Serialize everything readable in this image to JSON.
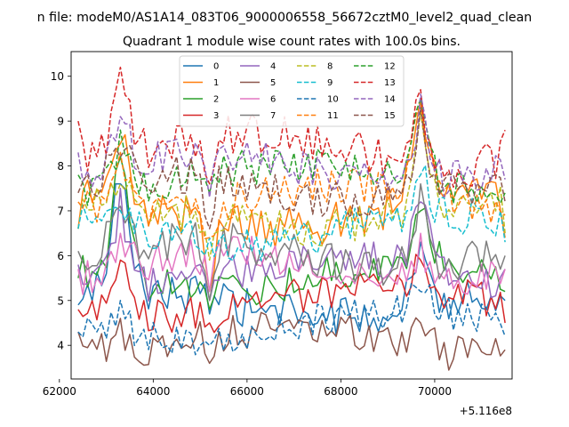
{
  "chart_data": {
    "type": "line",
    "suptitle": "n file: modeM0/AS1A14_083T06_9000006558_56672cztM0_level2_quad_clean",
    "title": "Quadrant 1 module wise count rates with 100.0s bins.",
    "xlabel": "",
    "ylabel": "",
    "x_offset_label": "+5.116e8",
    "xlim": [
      62250,
      71650
    ],
    "ylim": [
      3.25,
      10.55
    ],
    "xticks": [
      62000,
      64000,
      66000,
      68000,
      70000
    ],
    "xtick_labels": [
      "62000",
      "64000",
      "66000",
      "68000",
      "70000"
    ],
    "yticks": [
      4,
      5,
      6,
      7,
      8,
      9,
      10
    ],
    "ytick_labels": [
      "4",
      "5",
      "6",
      "7",
      "8",
      "9",
      "10"
    ],
    "x_start": 62400,
    "x_step": 100,
    "grid": false,
    "legend_position": "top-center",
    "legend_columns": 4,
    "series": [
      {
        "name": "0",
        "color": "#1f77b4",
        "dash": "solid",
        "level": 4.95,
        "amp": 0.32,
        "phase": 0.3,
        "key_values": {
          "62400": 4.9,
          "63300": 7.6,
          "65200": 4.7,
          "69700": 6.3,
          "71500": 5.0
        }
      },
      {
        "name": "1",
        "color": "#ff7f0e",
        "dash": "solid",
        "level": 7.0,
        "amp": 0.35,
        "phase": 1.1,
        "key_values": {
          "62400": 6.6,
          "63300": 8.5,
          "65200": 5.2,
          "69700": 9.5,
          "71500": 6.4
        }
      },
      {
        "name": "2",
        "color": "#2ca02c",
        "dash": "solid",
        "level": 5.55,
        "amp": 0.3,
        "phase": 2.0,
        "key_values": {
          "62400": 5.5,
          "63300": 8.2,
          "65200": 4.8,
          "69700": 7.0,
          "71500": 5.2
        }
      },
      {
        "name": "3",
        "color": "#d62728",
        "dash": "solid",
        "level": 5.0,
        "amp": 0.3,
        "phase": 2.7,
        "key_values": {
          "62400": 4.8,
          "63300": 5.9,
          "65200": 4.5,
          "69700": 5.9,
          "71500": 4.5
        }
      },
      {
        "name": "4",
        "color": "#9467bd",
        "dash": "solid",
        "level": 5.65,
        "amp": 0.3,
        "phase": 3.4,
        "key_values": {
          "62400": 5.8,
          "63300": 7.5,
          "65200": 5.0,
          "69700": 7.2,
          "71500": 5.7
        }
      },
      {
        "name": "5",
        "color": "#8c564b",
        "dash": "solid",
        "level": 4.1,
        "amp": 0.3,
        "phase": 4.1,
        "key_values": {
          "62400": 4.3,
          "63300": 4.6,
          "65200": 3.6,
          "69700": 4.5,
          "71500": 3.9
        }
      },
      {
        "name": "6",
        "color": "#e377c2",
        "dash": "solid",
        "level": 5.75,
        "amp": 0.3,
        "phase": 4.9,
        "key_values": {
          "62400": 5.7,
          "63300": 6.5,
          "65200": 5.2,
          "69700": 6.5,
          "71500": 5.7
        }
      },
      {
        "name": "7",
        "color": "#7f7f7f",
        "dash": "solid",
        "level": 6.05,
        "amp": 0.32,
        "phase": 5.6,
        "key_values": {
          "62400": 6.1,
          "63300": 7.1,
          "65200": 5.0,
          "69700": 7.6,
          "71500": 6.0
        }
      },
      {
        "name": "8",
        "color": "#bcbd22",
        "dash": "dashed",
        "level": 6.9,
        "amp": 0.3,
        "phase": 0.8,
        "key_values": {
          "62400": 6.6,
          "63300": 7.6,
          "65200": 5.9,
          "69700": 9.2,
          "71500": 6.5
        }
      },
      {
        "name": "9",
        "color": "#17becf",
        "dash": "dashed",
        "level": 6.6,
        "amp": 0.3,
        "phase": 1.6,
        "key_values": {
          "62400": 6.6,
          "63300": 7.0,
          "65200": 6.4,
          "69700": 7.8,
          "71500": 6.3
        }
      },
      {
        "name": "10",
        "color": "#1f77b4",
        "dash": "dashed",
        "level": 4.45,
        "amp": 0.28,
        "phase": 2.4,
        "key_values": {
          "62400": 4.3,
          "63300": 5.0,
          "65200": 4.0,
          "69700": 5.2,
          "71500": 4.2
        }
      },
      {
        "name": "11",
        "color": "#ff7f0e",
        "dash": "dashed",
        "level": 7.3,
        "amp": 0.3,
        "phase": 3.1,
        "key_values": {
          "62400": 7.2,
          "63300": 8.3,
          "65200": 6.4,
          "69700": 9.4,
          "71500": 6.9
        }
      },
      {
        "name": "12",
        "color": "#2ca02c",
        "dash": "dashed",
        "level": 7.75,
        "amp": 0.3,
        "phase": 3.9,
        "key_values": {
          "62400": 7.8,
          "63300": 8.8,
          "65200": 7.4,
          "69700": 9.5,
          "71500": 7.4
        }
      },
      {
        "name": "13",
        "color": "#d62728",
        "dash": "dashed",
        "level": 8.35,
        "amp": 0.35,
        "phase": 4.6,
        "key_values": {
          "62400": 9.0,
          "63300": 10.2,
          "65200": 7.6,
          "69700": 9.7,
          "71500": 8.8
        }
      },
      {
        "name": "14",
        "color": "#9467bd",
        "dash": "dashed",
        "level": 7.95,
        "amp": 0.3,
        "phase": 5.3,
        "key_values": {
          "62400": 8.3,
          "63300": 9.1,
          "65200": 7.3,
          "69700": 9.6,
          "71500": 7.7
        }
      },
      {
        "name": "15",
        "color": "#8c564b",
        "dash": "dashed",
        "level": 7.5,
        "amp": 0.3,
        "phase": 6.0,
        "key_values": {
          "62400": 7.4,
          "63300": 8.2,
          "65200": 6.6,
          "69700": 9.3,
          "71500": 7.2
        }
      }
    ]
  }
}
